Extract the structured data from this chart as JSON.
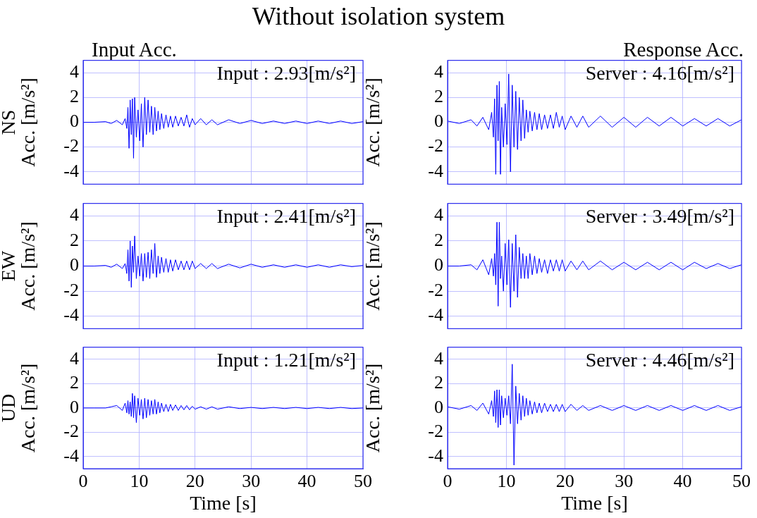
{
  "chart_data": [
    {
      "type": "line",
      "title": "Without isolation system",
      "subtitle": "Input Acc.",
      "ylabel": "NS\nAcc. [m/s²]",
      "annotations": [
        "Input : 2.93[m/s²]"
      ],
      "xlim": [
        0,
        50
      ],
      "xticks": [
        0,
        10,
        20,
        30,
        40,
        50
      ],
      "ylim": [
        -5,
        5
      ],
      "yticks": [
        -4,
        -2,
        0,
        2,
        4
      ],
      "grid": true,
      "tick_labels": "y",
      "marker": "none",
      "line_style": "solid",
      "x": [
        0,
        2,
        4,
        5,
        6,
        7,
        7.5,
        7.8,
        8.0,
        8.2,
        8.4,
        8.6,
        8.8,
        9.0,
        9.2,
        9.5,
        9.8,
        10.1,
        10.4,
        10.7,
        11.0,
        11.3,
        11.6,
        11.9,
        12.2,
        12.5,
        12.8,
        13.1,
        13.4,
        13.7,
        14.0,
        14.4,
        14.8,
        15.2,
        15.6,
        16.0,
        16.5,
        17,
        17.5,
        18,
        18.5,
        19,
        19.5,
        20,
        21,
        22,
        23,
        24,
        26,
        28,
        30,
        32,
        34,
        36,
        38,
        40,
        42,
        44,
        46,
        48,
        50
      ],
      "series": [
        {
          "color": "#0000ff",
          "values": [
            0,
            0,
            0.05,
            -0.1,
            0.15,
            -0.2,
            0.3,
            -0.5,
            1.2,
            -2.1,
            1.8,
            -1.0,
            1.9,
            -2.9,
            2.0,
            -1.2,
            1.0,
            -1.5,
            1.5,
            -2.0,
            2.0,
            -1.0,
            1.8,
            -0.8,
            1.3,
            -1.0,
            1.2,
            -0.7,
            0.9,
            -0.6,
            0.7,
            -0.5,
            0.6,
            -0.4,
            0.5,
            -0.4,
            0.5,
            -0.3,
            0.4,
            -0.3,
            0.6,
            -0.4,
            0.3,
            -0.2,
            0.3,
            -0.2,
            0.2,
            -0.2,
            0.2,
            -0.1,
            0.15,
            -0.1,
            0.1,
            -0.1,
            0.1,
            -0.1,
            0.1,
            -0.1,
            0.1,
            -0.1,
            0.05
          ]
        }
      ]
    },
    {
      "type": "line",
      "subtitle": "Response Acc.",
      "ylabel": "Acc. [m/s²]",
      "annotations": [
        "Server : 4.16[m/s²]"
      ],
      "xlim": [
        0,
        50
      ],
      "xticks": [
        0,
        10,
        20,
        30,
        40,
        50
      ],
      "ylim": [
        -5,
        5
      ],
      "yticks": [
        -4,
        -2,
        0,
        2,
        4
      ],
      "grid": true,
      "tick_labels": "y",
      "marker": "none",
      "line_style": "solid",
      "x": [
        0,
        2,
        4,
        5,
        6,
        7,
        7.5,
        7.8,
        8.0,
        8.2,
        8.4,
        8.6,
        8.8,
        9.0,
        9.2,
        9.5,
        9.8,
        10.1,
        10.4,
        10.7,
        11.0,
        11.3,
        11.6,
        11.9,
        12.2,
        12.5,
        12.8,
        13.1,
        13.4,
        13.7,
        14.0,
        14.4,
        14.8,
        15.2,
        15.6,
        16.0,
        16.5,
        17,
        17.5,
        18,
        18.5,
        19,
        19.5,
        20,
        21,
        22,
        23,
        24,
        26,
        28,
        30,
        32,
        34,
        36,
        38,
        40,
        42,
        44,
        46,
        48,
        50
      ],
      "series": [
        {
          "color": "#0000ff",
          "values": [
            0.1,
            -0.1,
            0.2,
            -0.3,
            0.4,
            -0.6,
            0.8,
            -1.2,
            1.9,
            -4.2,
            3.0,
            -1.5,
            3.3,
            -4.2,
            1.2,
            -2.0,
            1.5,
            -1.8,
            3.9,
            -4.0,
            3.0,
            -2.0,
            2.5,
            -2.2,
            2.0,
            -1.5,
            1.8,
            -1.3,
            1.0,
            -0.8,
            0.9,
            -0.7,
            0.8,
            -0.6,
            0.7,
            -0.6,
            0.6,
            -0.5,
            0.6,
            -0.5,
            0.8,
            -0.4,
            0.5,
            -0.6,
            0.5,
            -0.4,
            0.5,
            -0.4,
            0.5,
            -0.4,
            0.4,
            -0.4,
            0.4,
            -0.3,
            0.4,
            -0.3,
            0.3,
            -0.3,
            0.3,
            -0.3,
            0.2
          ]
        }
      ]
    },
    {
      "type": "line",
      "ylabel": "EW\nAcc. [m/s²]",
      "annotations": [
        "Input : 2.41[m/s²]"
      ],
      "xlim": [
        0,
        50
      ],
      "xticks": [
        0,
        10,
        20,
        30,
        40,
        50
      ],
      "ylim": [
        -5,
        5
      ],
      "yticks": [
        -4,
        -2,
        0,
        2,
        4
      ],
      "grid": true,
      "tick_labels": "y",
      "marker": "none",
      "line_style": "solid",
      "x": [
        0,
        2,
        4,
        5,
        6,
        7,
        7.5,
        7.8,
        8.0,
        8.2,
        8.4,
        8.6,
        8.8,
        9.0,
        9.2,
        9.5,
        9.8,
        10.1,
        10.4,
        10.7,
        11.0,
        11.3,
        11.6,
        11.9,
        12.2,
        12.5,
        12.8,
        13.1,
        13.4,
        13.7,
        14.0,
        14.4,
        14.8,
        15.2,
        15.6,
        16.0,
        16.5,
        17,
        17.5,
        18,
        18.5,
        19,
        19.5,
        20,
        21,
        22,
        23,
        24,
        26,
        28,
        30,
        32,
        34,
        36,
        38,
        40,
        42,
        44,
        46,
        48,
        50
      ],
      "series": [
        {
          "color": "#0000ff",
          "values": [
            0,
            0,
            0.05,
            -0.1,
            0.15,
            -0.2,
            0.2,
            -0.6,
            1.3,
            -1.2,
            2.0,
            -1.7,
            1.6,
            -0.5,
            2.4,
            -1.0,
            0.8,
            -0.8,
            1.0,
            -1.2,
            1.0,
            -0.9,
            1.1,
            -1.0,
            1.3,
            -0.6,
            1.8,
            -0.9,
            0.8,
            -0.6,
            0.7,
            -0.5,
            0.6,
            -0.5,
            0.5,
            -0.4,
            0.5,
            -0.3,
            0.4,
            -0.3,
            0.4,
            -0.3,
            0.4,
            -0.2,
            0.2,
            -0.2,
            0.2,
            -0.2,
            0.15,
            -0.15,
            0.15,
            -0.1,
            0.1,
            -0.1,
            0.1,
            -0.1,
            0.1,
            -0.1,
            0.1,
            -0.05,
            0.05
          ]
        }
      ]
    },
    {
      "type": "line",
      "ylabel": "Acc. [m/s²]",
      "annotations": [
        "Server : 3.49[m/s²]"
      ],
      "xlim": [
        0,
        50
      ],
      "xticks": [
        0,
        10,
        20,
        30,
        40,
        50
      ],
      "ylim": [
        -5,
        5
      ],
      "yticks": [
        -4,
        -2,
        0,
        2,
        4
      ],
      "grid": true,
      "tick_labels": "y",
      "marker": "none",
      "line_style": "solid",
      "x": [
        0,
        2,
        4,
        5,
        6,
        7,
        7.5,
        7.8,
        8.0,
        8.2,
        8.4,
        8.6,
        8.8,
        9.0,
        9.2,
        9.5,
        9.8,
        10.1,
        10.4,
        10.7,
        11.0,
        11.3,
        11.6,
        11.9,
        12.2,
        12.5,
        12.8,
        13.1,
        13.4,
        13.7,
        14.0,
        14.4,
        14.8,
        15.2,
        15.6,
        16.0,
        16.5,
        17,
        17.5,
        18,
        18.5,
        19,
        19.5,
        20,
        21,
        22,
        23,
        24,
        26,
        28,
        30,
        32,
        34,
        36,
        38,
        40,
        42,
        44,
        46,
        48,
        50
      ],
      "series": [
        {
          "color": "#0000ff",
          "values": [
            0,
            0,
            0.1,
            -0.3,
            0.5,
            -0.7,
            0.6,
            -0.8,
            1.0,
            -1.5,
            3.5,
            -3.2,
            3.5,
            -1.0,
            0.8,
            -2.0,
            1.8,
            -1.5,
            2.1,
            -3.3,
            1.8,
            -2.0,
            2.5,
            -2.5,
            1.5,
            -1.0,
            1.0,
            -1.0,
            0.8,
            -1.0,
            1.0,
            -0.7,
            0.8,
            -0.6,
            0.6,
            -0.5,
            0.5,
            -0.6,
            0.5,
            -0.4,
            0.5,
            -0.4,
            0.5,
            -0.4,
            0.4,
            -0.3,
            0.4,
            -0.3,
            0.4,
            -0.3,
            0.3,
            -0.3,
            0.3,
            -0.3,
            0.3,
            -0.3,
            0.3,
            -0.2,
            0.2,
            -0.2,
            0.1
          ]
        }
      ]
    },
    {
      "type": "line",
      "ylabel": "UD\nAcc. [m/s²]",
      "xlabel": "Time [s]",
      "annotations": [
        "Input : 1.21[m/s²]"
      ],
      "xlim": [
        0,
        50
      ],
      "xticks": [
        0,
        10,
        20,
        30,
        40,
        50
      ],
      "ylim": [
        -5,
        5
      ],
      "yticks": [
        -4,
        -2,
        0,
        2,
        4
      ],
      "grid": true,
      "marker": "none",
      "line_style": "solid",
      "x": [
        0,
        2,
        4,
        5,
        6,
        7,
        7.5,
        7.8,
        8.0,
        8.2,
        8.4,
        8.6,
        8.8,
        9.0,
        9.2,
        9.5,
        9.8,
        10.1,
        10.4,
        10.7,
        11.0,
        11.3,
        11.6,
        11.9,
        12.2,
        12.5,
        12.8,
        13.1,
        13.4,
        13.7,
        14.0,
        14.4,
        14.8,
        15.2,
        15.6,
        16.0,
        16.5,
        17,
        17.5,
        18,
        18.5,
        19,
        19.5,
        20,
        21,
        22,
        23,
        24,
        26,
        28,
        30,
        32,
        34,
        36,
        38,
        40,
        42,
        44,
        46,
        48,
        50
      ],
      "series": [
        {
          "color": "#0000ff",
          "values": [
            0,
            0,
            0,
            0.1,
            0.2,
            -0.2,
            0.4,
            -0.4,
            0.6,
            -0.5,
            0.5,
            -0.7,
            1.2,
            -0.8,
            1.0,
            -1.2,
            0.8,
            -0.6,
            0.7,
            -0.9,
            0.8,
            -0.8,
            0.7,
            -0.6,
            0.6,
            -0.5,
            0.7,
            -0.5,
            0.5,
            -0.4,
            0.4,
            -0.3,
            0.3,
            -0.3,
            0.3,
            -0.2,
            0.25,
            -0.2,
            0.2,
            -0.15,
            0.2,
            -0.15,
            0.15,
            -0.1,
            0.1,
            -0.1,
            0.1,
            -0.1,
            0.1,
            -0.05,
            0.05,
            -0.05,
            0.05,
            -0.05,
            0.05,
            -0.05,
            0.05,
            -0.05,
            0.05,
            -0.05,
            0
          ]
        }
      ]
    },
    {
      "type": "line",
      "ylabel": "Acc. [m/s²]",
      "xlabel": "Time [s]",
      "annotations": [
        "Server : 4.46[m/s²]"
      ],
      "xlim": [
        0,
        50
      ],
      "xticks": [
        0,
        10,
        20,
        30,
        40,
        50
      ],
      "ylim": [
        -5,
        5
      ],
      "yticks": [
        -4,
        -2,
        0,
        2,
        4
      ],
      "grid": true,
      "marker": "none",
      "line_style": "solid",
      "x": [
        0,
        2,
        4,
        5,
        6,
        7,
        7.5,
        7.8,
        8.0,
        8.2,
        8.4,
        8.6,
        8.8,
        9.0,
        9.2,
        9.5,
        9.8,
        10.1,
        10.4,
        10.7,
        11.0,
        11.3,
        11.6,
        11.9,
        12.2,
        12.5,
        12.8,
        13.1,
        13.4,
        13.7,
        14.0,
        14.4,
        14.8,
        15.2,
        15.6,
        16.0,
        16.5,
        17,
        17.5,
        18,
        18.5,
        19,
        19.5,
        20,
        21,
        22,
        23,
        24,
        26,
        28,
        30,
        32,
        34,
        36,
        38,
        40,
        42,
        44,
        46,
        48,
        50
      ],
      "series": [
        {
          "color": "#0000ff",
          "values": [
            0.1,
            -0.1,
            0.2,
            -0.2,
            0.4,
            -0.5,
            0.6,
            -0.7,
            1.4,
            -1.2,
            1.5,
            -1.6,
            1.5,
            -1.4,
            1.0,
            -0.8,
            0.8,
            -0.6,
            1.0,
            -1.3,
            3.6,
            -4.7,
            1.8,
            -1.3,
            1.2,
            -1.0,
            1.0,
            -0.7,
            0.8,
            -0.6,
            0.6,
            -0.5,
            0.5,
            -0.4,
            0.4,
            -0.4,
            0.4,
            -0.3,
            0.3,
            -0.3,
            0.3,
            -0.3,
            0.3,
            -0.3,
            0.3,
            -0.2,
            0.2,
            -0.2,
            0.2,
            -0.2,
            0.2,
            -0.2,
            0.2,
            -0.2,
            0.2,
            -0.2,
            0.2,
            -0.2,
            0.2,
            -0.2,
            0.1
          ]
        }
      ]
    }
  ]
}
